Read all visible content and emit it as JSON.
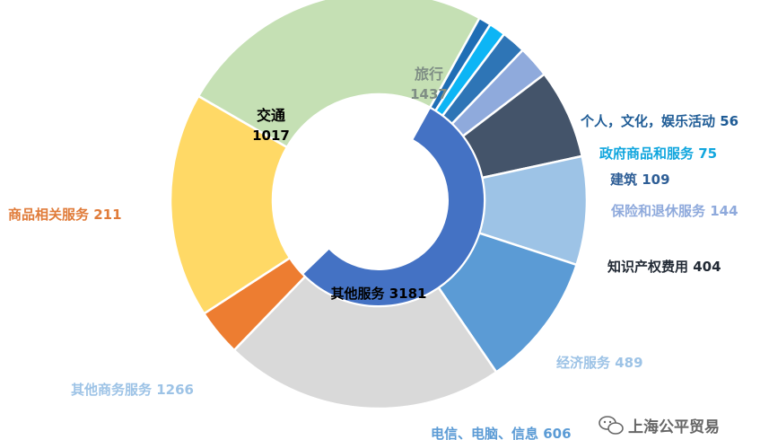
{
  "chart_data": {
    "type": "pie",
    "subtype": "sunburst",
    "inner_ring": {
      "categories": [
        "其他服务"
      ],
      "values": [
        3181
      ],
      "label": "其他服务 3181",
      "color": "#4472C4"
    },
    "outer_ring": {
      "categories": [
        "旅行",
        "个人，文化，娱乐活动",
        "政府商品和服务",
        "建筑",
        "保险和退休服务",
        "知识产权费用",
        "经济服务",
        "电信、电脑、信息",
        "其他商务服务",
        "商品相关服务",
        "交通"
      ],
      "values": [
        1437,
        56,
        75,
        109,
        144,
        404,
        489,
        606,
        1266,
        211,
        1017
      ],
      "colors": [
        "#C5E0B4",
        "#1F6EB5",
        "#0DB5F5",
        "#2E75B6",
        "#8FAADC",
        "#44546A",
        "#9DC3E6",
        "#5B9BD5",
        "#D9D9D9",
        "#ED7D31",
        "#FFD966"
      ],
      "labels": [
        {
          "name": "旅行",
          "value": "1437",
          "color": "#7F8E85"
        },
        {
          "name": "个人，文化，娱乐活动",
          "value": "56",
          "color": "#1F5C96"
        },
        {
          "name": "政府商品和服务",
          "value": "75",
          "color": "#11A6DE"
        },
        {
          "name": "建筑",
          "value": "109",
          "color": "#2E5E96"
        },
        {
          "name": "保险和退休服务",
          "value": "144",
          "color": "#8FAADC"
        },
        {
          "name": "知识产权费用",
          "value": "404",
          "color": "#222A35"
        },
        {
          "name": "经济服务",
          "value": "489",
          "color": "#9DC3E6"
        },
        {
          "name": "电信、电脑、信息",
          "value": "606",
          "color": "#5B9BD5"
        },
        {
          "name": "其他商务服务",
          "value": "1266",
          "color": "#9DC3E6"
        },
        {
          "name": "商品相关服务",
          "value": "211",
          "color": "#E07B39"
        },
        {
          "name": "交通",
          "value": "1017",
          "color": "#000000"
        }
      ]
    }
  },
  "watermark": {
    "text": "上海公平贸易",
    "icon": "wechat-icon"
  }
}
